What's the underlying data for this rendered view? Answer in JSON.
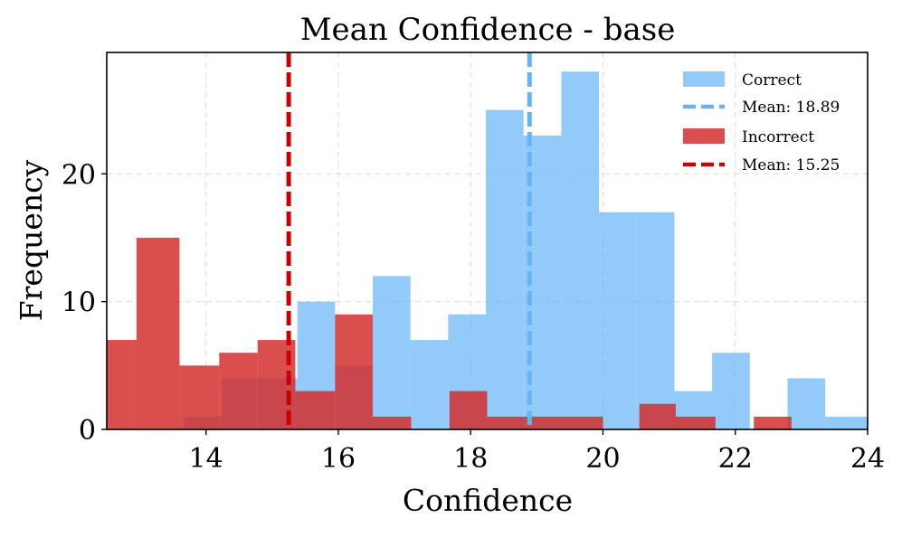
{
  "chart_data": {
    "type": "bar",
    "title": "Mean Confidence - base",
    "xlabel": "Confidence",
    "ylabel": "Frequency",
    "xlim": [
      12.5,
      24
    ],
    "ylim": [
      0,
      29.5
    ],
    "xticks": [
      14,
      16,
      18,
      20,
      22,
      24
    ],
    "yticks": [
      0,
      10,
      20
    ],
    "grid": true,
    "legend_position": "top-right",
    "series": [
      {
        "name": "Correct",
        "color": "#64b5f6",
        "opacity": 0.7,
        "bins": [
          {
            "x0": 13.67,
            "x1": 14.24,
            "count": 1
          },
          {
            "x0": 14.24,
            "x1": 14.81,
            "count": 4
          },
          {
            "x0": 14.81,
            "x1": 15.38,
            "count": 4
          },
          {
            "x0": 15.38,
            "x1": 15.95,
            "count": 10
          },
          {
            "x0": 15.95,
            "x1": 16.52,
            "count": 5
          },
          {
            "x0": 16.52,
            "x1": 17.09,
            "count": 12
          },
          {
            "x0": 17.09,
            "x1": 17.66,
            "count": 7
          },
          {
            "x0": 17.66,
            "x1": 18.23,
            "count": 9
          },
          {
            "x0": 18.23,
            "x1": 18.8,
            "count": 25
          },
          {
            "x0": 18.8,
            "x1": 19.37,
            "count": 23
          },
          {
            "x0": 19.37,
            "x1": 19.94,
            "count": 28
          },
          {
            "x0": 19.94,
            "x1": 20.51,
            "count": 17
          },
          {
            "x0": 20.51,
            "x1": 21.08,
            "count": 17
          },
          {
            "x0": 21.08,
            "x1": 21.65,
            "count": 3
          },
          {
            "x0": 21.65,
            "x1": 22.22,
            "count": 6
          },
          {
            "x0": 22.22,
            "x1": 22.79,
            "count": 0
          },
          {
            "x0": 22.79,
            "x1": 23.36,
            "count": 4
          },
          {
            "x0": 23.36,
            "x1": 24.0,
            "count": 1
          }
        ],
        "mean": 18.89,
        "mean_label": "Mean: 18.89",
        "mean_color": "#64b5f6"
      },
      {
        "name": "Incorrect",
        "color": "#d32f2f",
        "opacity": 0.85,
        "bins": [
          {
            "x0": 12.3,
            "x1": 12.95,
            "count": 7
          },
          {
            "x0": 12.95,
            "x1": 13.6,
            "count": 15
          },
          {
            "x0": 13.6,
            "x1": 14.2,
            "count": 5
          },
          {
            "x0": 14.2,
            "x1": 14.78,
            "count": 6
          },
          {
            "x0": 14.78,
            "x1": 15.35,
            "count": 7
          },
          {
            "x0": 15.35,
            "x1": 15.95,
            "count": 3
          },
          {
            "x0": 15.95,
            "x1": 16.52,
            "count": 9
          },
          {
            "x0": 16.52,
            "x1": 17.1,
            "count": 1
          },
          {
            "x0": 17.1,
            "x1": 17.68,
            "count": 0
          },
          {
            "x0": 17.68,
            "x1": 18.25,
            "count": 3
          },
          {
            "x0": 18.25,
            "x1": 18.83,
            "count": 1
          },
          {
            "x0": 18.83,
            "x1": 20.0,
            "count": 1
          },
          {
            "x0": 20.0,
            "x1": 20.55,
            "count": 0
          },
          {
            "x0": 20.55,
            "x1": 21.1,
            "count": 2
          },
          {
            "x0": 21.1,
            "x1": 21.7,
            "count": 1
          },
          {
            "x0": 21.7,
            "x1": 22.28,
            "count": 0
          },
          {
            "x0": 22.28,
            "x1": 22.85,
            "count": 1
          }
        ],
        "mean": 15.25,
        "mean_label": "Mean: 15.25",
        "mean_color": "#cc0000"
      }
    ]
  }
}
